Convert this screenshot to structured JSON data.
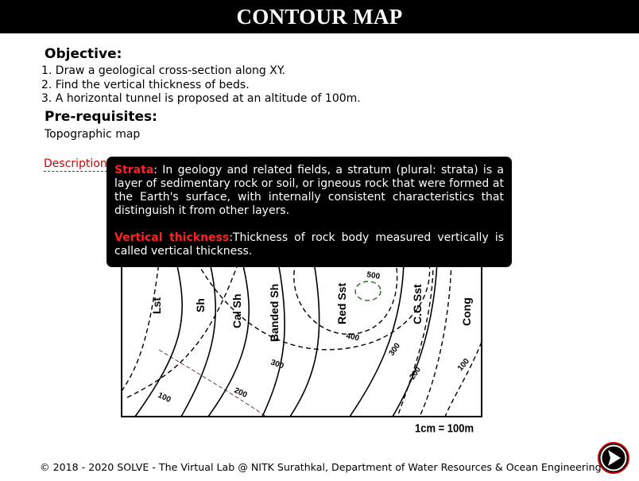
{
  "header": {
    "title": "CONTOUR MAP"
  },
  "objective": {
    "heading": "Objective:",
    "items": [
      "1. Draw a geological cross-section along XY.",
      "2. Find the vertical thickness of beds.",
      "3. A horizontal tunnel is proposed at an altitude of 100m."
    ]
  },
  "prerequisites": {
    "heading": "Pre-requisites:",
    "text": "Topographic map"
  },
  "description_link": "Description",
  "tooltip": {
    "strata_term": "Strata",
    "strata_text": ": In geology and related fields, a stratum (plural: strata) is a layer of sedimentary rock or soil, or igneous rock that were formed at the Earth's surface, with internally consistent characteristics that distinguish it from other layers.",
    "vt_term": "Vertical thickness",
    "vt_text": ":Thickness of rock body measured vertically is called vertical thickness."
  },
  "map": {
    "bed_labels": [
      "Lst",
      "Sh",
      "Cal Sh",
      "Banded Sh",
      "Red Sst",
      "C.G Sst",
      "Cong"
    ],
    "contour_labels": [
      "500",
      "400",
      "300",
      "300",
      "200",
      "200",
      "100",
      "100"
    ],
    "scale": "1cm = 100m"
  },
  "footer": {
    "text": "© 2018 - 2020 SOLVE - The Virtual Lab @ NITK Surathkal, Department of Water Resources & Ocean Engineering"
  },
  "nav": {
    "next_icon": "arrow-right-icon",
    "accent": "#cc0000"
  }
}
